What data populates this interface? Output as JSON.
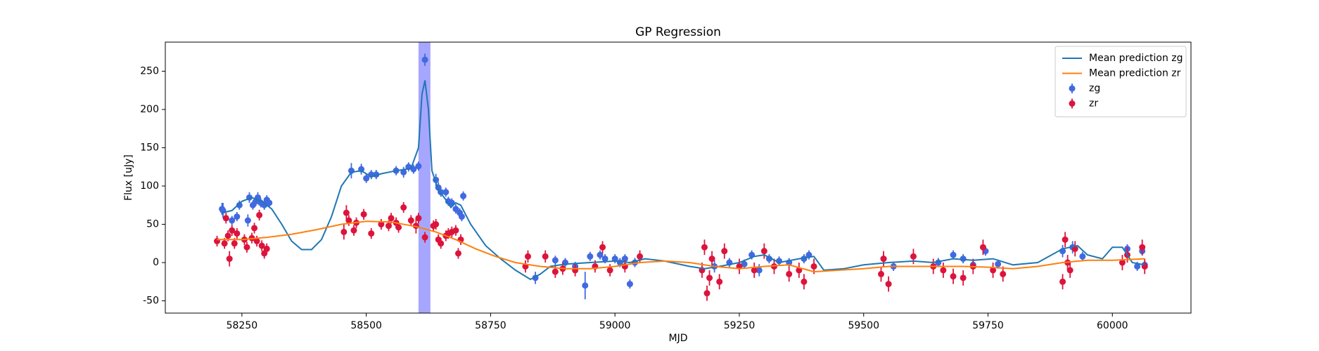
{
  "chart_data": {
    "type": "scatter",
    "title": "GP Regression",
    "xlabel": "MJD",
    "ylabel": "Flux [uJy]",
    "xlim": [
      58096,
      60158
    ],
    "ylim": [
      -66,
      288
    ],
    "xticks": [
      58250,
      58500,
      58750,
      59000,
      59250,
      59500,
      59750,
      60000
    ],
    "yticks": [
      -50,
      0,
      50,
      100,
      150,
      200,
      250
    ],
    "legend": "upper right",
    "span": {
      "x": [
        58605,
        58629
      ],
      "color": "#0000ff"
    },
    "series": [
      {
        "name": "Mean prediction zg",
        "type": "line",
        "color": "#1f77b4",
        "x": [
          58210,
          58230,
          58250,
          58270,
          58290,
          58310,
          58330,
          58350,
          58370,
          58390,
          58410,
          58430,
          58450,
          58470,
          58490,
          58510,
          58530,
          58560,
          58590,
          58605,
          58612,
          58618,
          58625,
          58632,
          58645,
          58660,
          58670,
          58680,
          58690,
          58710,
          58740,
          58770,
          58800,
          58830,
          58850,
          58870,
          58900,
          58950,
          59000,
          59030,
          59060,
          59100,
          59150,
          59180,
          59210,
          59250,
          59280,
          59300,
          59330,
          59370,
          59400,
          59420,
          59460,
          59500,
          59550,
          59600,
          59640,
          59680,
          59720,
          59760,
          59800,
          59850,
          59900,
          59930,
          59950,
          59980,
          60000,
          60020,
          60040,
          60065
        ],
        "values": [
          65,
          68,
          80,
          85,
          80,
          70,
          50,
          28,
          17,
          17,
          30,
          60,
          100,
          118,
          120,
          112,
          116,
          120,
          123,
          150,
          220,
          238,
          200,
          120,
          95,
          82,
          72,
          78,
          75,
          50,
          22,
          5,
          -10,
          -22,
          -15,
          -5,
          -2,
          0,
          2,
          0,
          5,
          2,
          -5,
          -8,
          -5,
          0,
          8,
          10,
          0,
          5,
          8,
          -10,
          -8,
          -3,
          0,
          2,
          0,
          5,
          3,
          5,
          -3,
          0,
          18,
          22,
          10,
          5,
          20,
          20,
          0,
          -3
        ]
      },
      {
        "name": "Mean prediction zr",
        "type": "line",
        "color": "#ff7f0e",
        "x": [
          58200,
          58250,
          58300,
          58350,
          58400,
          58450,
          58500,
          58550,
          58600,
          58640,
          58680,
          58720,
          58760,
          58800,
          58850,
          58900,
          58950,
          59000,
          59050,
          59100,
          59150,
          59200,
          59250,
          59300,
          59350,
          59400,
          59450,
          59500,
          59550,
          59600,
          59650,
          59700,
          59750,
          59800,
          59850,
          59900,
          59950,
          60000,
          60065
        ],
        "values": [
          30,
          30,
          33,
          37,
          43,
          50,
          54,
          53,
          47,
          40,
          30,
          18,
          8,
          0,
          -5,
          -8,
          -8,
          -5,
          0,
          2,
          0,
          -5,
          -8,
          -5,
          -3,
          -12,
          -10,
          -8,
          -5,
          -5,
          -5,
          -5,
          -6,
          -8,
          -5,
          0,
          3,
          3,
          5
        ]
      },
      {
        "name": "zg",
        "type": "errorbar",
        "color": "#4169e1",
        "x": [
          58210,
          58212,
          58230,
          58240,
          58245,
          58262,
          58265,
          58272,
          58278,
          58282,
          58288,
          58295,
          58300,
          58305,
          58470,
          58490,
          58500,
          58510,
          58520,
          58560,
          58575,
          58585,
          58595,
          58605,
          58618,
          58640,
          58645,
          58650,
          58660,
          58665,
          58672,
          58680,
          58688,
          58692,
          58695,
          58840,
          58880,
          58900,
          58920,
          58940,
          58950,
          58970,
          58980,
          59000,
          59010,
          59020,
          59030,
          59040,
          59200,
          59230,
          59260,
          59275,
          59290,
          59310,
          59330,
          59350,
          59380,
          59390,
          59540,
          59560,
          59650,
          59680,
          59700,
          59720,
          59745,
          59770,
          59900,
          59920,
          59940,
          60030,
          60050,
          60060,
          60065
        ],
        "values": [
          70,
          68,
          55,
          60,
          75,
          55,
          85,
          75,
          80,
          85,
          78,
          75,
          82,
          78,
          120,
          122,
          110,
          115,
          115,
          120,
          118,
          125,
          122,
          126,
          265,
          108,
          98,
          92,
          92,
          80,
          78,
          70,
          65,
          60,
          87,
          -20,
          3,
          0,
          -5,
          -30,
          8,
          10,
          5,
          5,
          0,
          5,
          -28,
          0,
          -5,
          0,
          -2,
          10,
          -10,
          5,
          2,
          0,
          5,
          10,
          5,
          -5,
          0,
          10,
          5,
          -3,
          15,
          -2,
          15,
          20,
          8,
          18,
          -5,
          15,
          -3
        ],
        "errors": [
          8,
          10,
          6,
          6,
          6,
          8,
          7,
          6,
          6,
          7,
          6,
          6,
          6,
          6,
          10,
          7,
          6,
          6,
          6,
          6,
          7,
          6,
          6,
          6,
          8,
          8,
          7,
          6,
          6,
          6,
          6,
          6,
          6,
          6,
          6,
          8,
          6,
          6,
          6,
          18,
          6,
          6,
          6,
          6,
          6,
          6,
          6,
          6,
          8,
          6,
          6,
          6,
          8,
          6,
          6,
          6,
          6,
          6,
          6,
          6,
          6,
          6,
          6,
          6,
          6,
          6,
          8,
          8,
          6,
          6,
          6,
          6,
          6
        ]
      },
      {
        "name": "zr",
        "type": "errorbar",
        "color": "#dc143c",
        "x": [
          58200,
          58215,
          58218,
          58222,
          58225,
          58230,
          58235,
          58240,
          58255,
          58260,
          58270,
          58275,
          58280,
          58285,
          58290,
          58295,
          58300,
          58455,
          58460,
          58465,
          58475,
          58480,
          58495,
          58510,
          58530,
          58545,
          58550,
          58560,
          58565,
          58575,
          58590,
          58600,
          58605,
          58618,
          58635,
          58640,
          58645,
          58650,
          58660,
          58665,
          58672,
          58680,
          58685,
          58690,
          58820,
          58825,
          58860,
          58880,
          58895,
          58920,
          58960,
          58975,
          58990,
          59020,
          59050,
          59175,
          59180,
          59185,
          59190,
          59195,
          59210,
          59220,
          59250,
          59280,
          59300,
          59320,
          59350,
          59370,
          59380,
          59400,
          59535,
          59540,
          59550,
          59600,
          59640,
          59660,
          59680,
          59700,
          59720,
          59740,
          59760,
          59780,
          59900,
          59905,
          59910,
          59915,
          59925,
          60020,
          60030,
          60060,
          60065
        ],
        "values": [
          28,
          25,
          58,
          35,
          5,
          42,
          25,
          38,
          30,
          20,
          32,
          45,
          28,
          62,
          22,
          12,
          18,
          40,
          65,
          55,
          42,
          52,
          63,
          38,
          50,
          48,
          58,
          52,
          46,
          72,
          55,
          48,
          58,
          33,
          48,
          50,
          30,
          25,
          35,
          38,
          40,
          42,
          12,
          30,
          -5,
          8,
          8,
          -12,
          -8,
          -10,
          -5,
          20,
          -10,
          -5,
          8,
          -10,
          20,
          -40,
          -20,
          5,
          -25,
          15,
          -5,
          -10,
          15,
          -5,
          -15,
          -10,
          -25,
          -5,
          -15,
          5,
          -28,
          8,
          -5,
          -10,
          -18,
          -20,
          -5,
          20,
          -10,
          -15,
          -25,
          30,
          0,
          -10,
          18,
          0,
          10,
          20,
          -5
        ],
        "errors": [
          7,
          7,
          7,
          7,
          10,
          7,
          7,
          7,
          7,
          7,
          7,
          7,
          7,
          7,
          7,
          7,
          7,
          10,
          10,
          7,
          7,
          7,
          7,
          7,
          7,
          7,
          7,
          7,
          7,
          7,
          7,
          10,
          7,
          7,
          7,
          7,
          7,
          7,
          7,
          7,
          7,
          7,
          7,
          7,
          8,
          8,
          8,
          8,
          8,
          8,
          8,
          8,
          8,
          8,
          8,
          10,
          10,
          10,
          10,
          10,
          10,
          10,
          10,
          10,
          10,
          10,
          10,
          10,
          10,
          10,
          10,
          10,
          10,
          10,
          10,
          10,
          10,
          10,
          10,
          10,
          10,
          10,
          10,
          10,
          10,
          10,
          10,
          10,
          10,
          10,
          10
        ]
      }
    ]
  }
}
